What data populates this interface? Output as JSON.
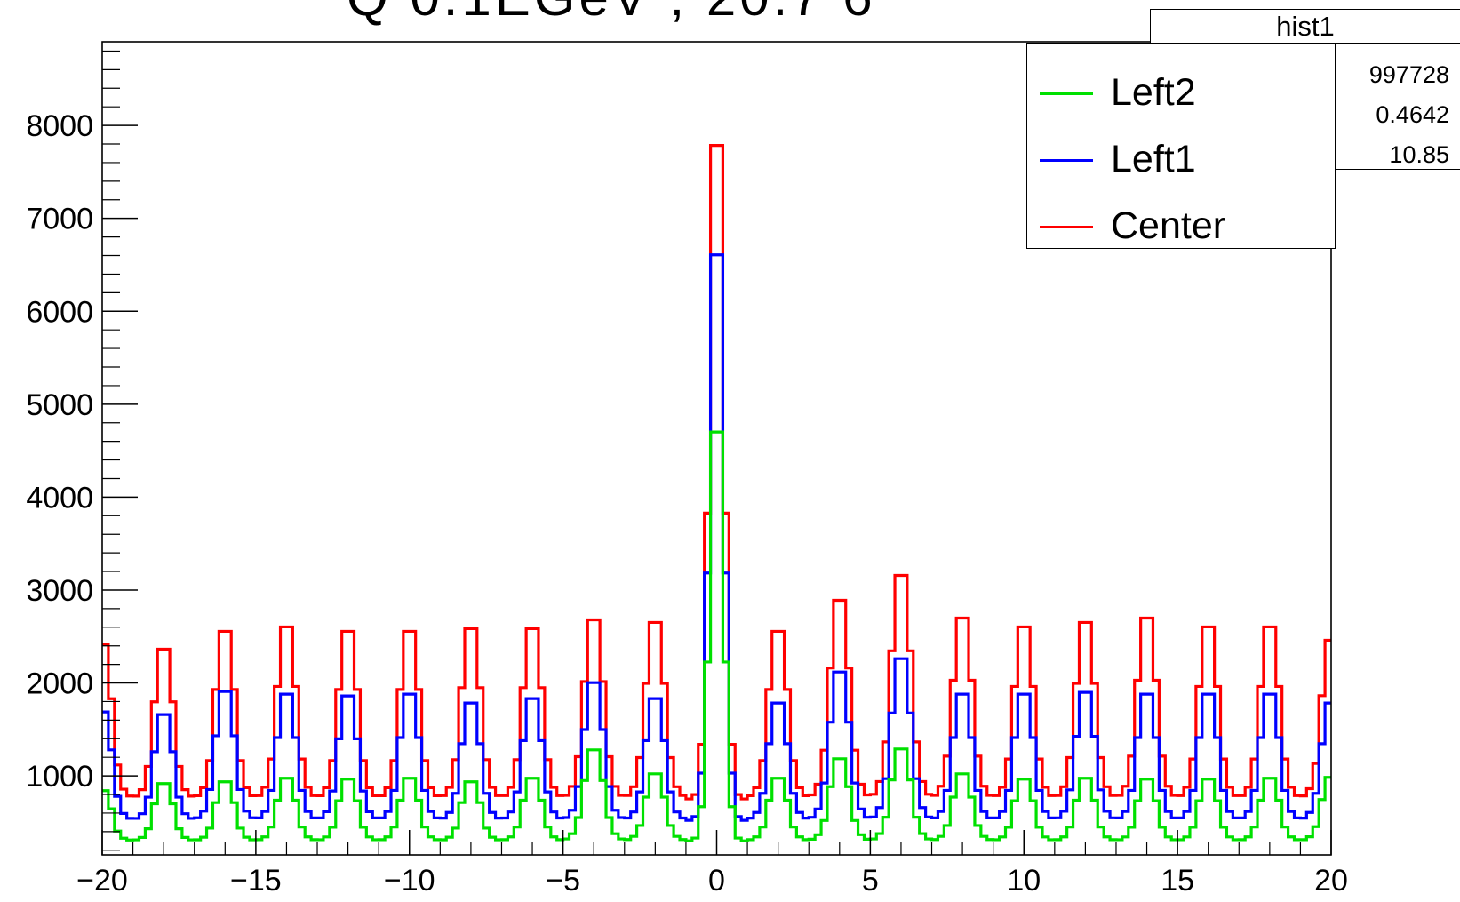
{
  "title_partial": "Q    0.1EGeV    ; 20.7 6",
  "stats": {
    "title": "hist1",
    "rows": [
      "997728",
      "0.4642",
      "10.85"
    ]
  },
  "legend": [
    {
      "label": "Left2",
      "color": "#00e000"
    },
    {
      "label": "Left1",
      "color": "#0000ff"
    },
    {
      "label": "Center",
      "color": "#ff0000"
    }
  ],
  "chart_data": {
    "type": "line",
    "style": "step histogram",
    "xlim": [
      -20,
      20
    ],
    "ylim": [
      150,
      8900
    ],
    "x_ticks": [
      -20,
      -15,
      -10,
      -5,
      0,
      5,
      10,
      15,
      20
    ],
    "x_tick_labels": [
      "−20",
      "−15",
      "−10",
      "−5",
      "0",
      "5",
      "10",
      "15",
      "20"
    ],
    "y_ticks": [
      1000,
      2000,
      3000,
      4000,
      5000,
      6000,
      7000,
      8000
    ],
    "y_tick_labels": [
      "1000",
      "2000",
      "3000",
      "4000",
      "5000",
      "6000",
      "7000",
      "8000"
    ],
    "bin_width": 0.2,
    "peak_period": 2,
    "series": [
      {
        "name": "Center",
        "color": "#ff0000",
        "baseline": 750,
        "side_peak": 2650,
        "central_peak": 8550,
        "peaks": [
          [
            -20,
            2500
          ],
          [
            -18,
            2450
          ],
          [
            -16,
            2650
          ],
          [
            -14,
            2700
          ],
          [
            -12,
            2650
          ],
          [
            -10,
            2650
          ],
          [
            -8,
            2680
          ],
          [
            -6,
            2680
          ],
          [
            -4,
            2780
          ],
          [
            -2,
            2750
          ],
          [
            2,
            2650
          ],
          [
            4,
            3000
          ],
          [
            6,
            3280
          ],
          [
            8,
            2800
          ],
          [
            10,
            2700
          ],
          [
            12,
            2750
          ],
          [
            14,
            2800
          ],
          [
            16,
            2700
          ],
          [
            18,
            2700
          ],
          [
            20,
            2550
          ]
        ]
      },
      {
        "name": "Left1",
        "color": "#0000ff",
        "baseline": 520,
        "side_peak": 1900,
        "central_peak": 7270,
        "peaks": [
          [
            -20,
            1750
          ],
          [
            -18,
            1720
          ],
          [
            -16,
            1980
          ],
          [
            -14,
            1950
          ],
          [
            -12,
            1930
          ],
          [
            -10,
            1950
          ],
          [
            -8,
            1850
          ],
          [
            -6,
            1900
          ],
          [
            -4,
            2080
          ],
          [
            -2,
            1900
          ],
          [
            2,
            1850
          ],
          [
            4,
            2200
          ],
          [
            6,
            2350
          ],
          [
            8,
            1950
          ],
          [
            10,
            1950
          ],
          [
            12,
            1970
          ],
          [
            14,
            1950
          ],
          [
            16,
            1950
          ],
          [
            18,
            1950
          ],
          [
            20,
            1850
          ]
        ]
      },
      {
        "name": "Left2",
        "color": "#00e000",
        "baseline": 300,
        "side_peak": 950,
        "central_peak": 5180,
        "peaks": [
          [
            -20,
            870
          ],
          [
            -18,
            950
          ],
          [
            -16,
            970
          ],
          [
            -14,
            1010
          ],
          [
            -12,
            1000
          ],
          [
            -10,
            1010
          ],
          [
            -8,
            970
          ],
          [
            -6,
            1010
          ],
          [
            -4,
            1330
          ],
          [
            -2,
            1060
          ],
          [
            2,
            1010
          ],
          [
            4,
            1230
          ],
          [
            6,
            1340
          ],
          [
            8,
            1060
          ],
          [
            10,
            1000
          ],
          [
            12,
            1010
          ],
          [
            14,
            1000
          ],
          [
            16,
            1000
          ],
          [
            18,
            1010
          ],
          [
            20,
            1020
          ]
        ]
      }
    ]
  }
}
